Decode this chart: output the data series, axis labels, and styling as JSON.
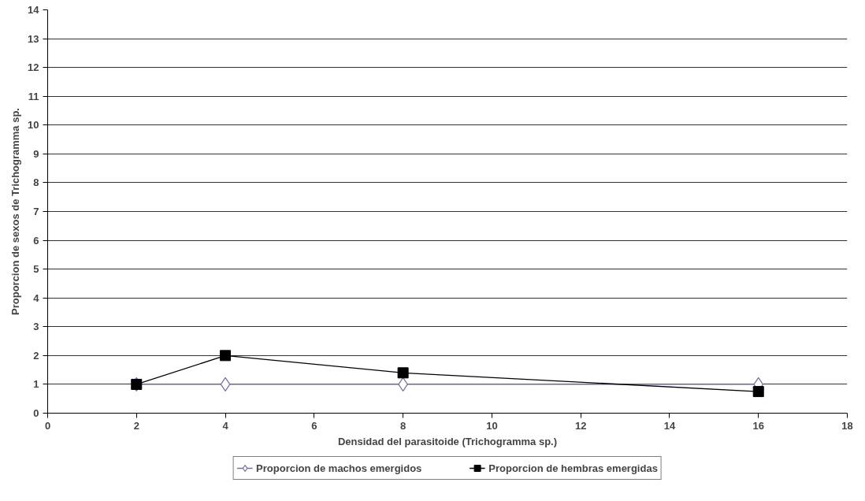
{
  "chart_data": {
    "type": "line",
    "xlabel": "Densidad del parasitoide (Trichogramma sp.)",
    "ylabel": "Proporcion de sexos de Trichogramma sp.",
    "x": [
      2,
      4,
      8,
      16
    ],
    "series": [
      {
        "name": "Proporcion de machos emergidos",
        "color": "#7070a8",
        "values": [
          1,
          1,
          1,
          1
        ],
        "marker": "diamond"
      },
      {
        "name": "Proporcion de hembras emergidas",
        "color": "#000000",
        "values": [
          1,
          2,
          1.4,
          0.75
        ],
        "marker": "square"
      }
    ],
    "xlim": [
      0,
      18
    ],
    "xticks": [
      0,
      2,
      4,
      6,
      8,
      10,
      12,
      14,
      16,
      18
    ],
    "ylim": [
      0,
      14
    ],
    "yticks": [
      0,
      1,
      2,
      3,
      4,
      5,
      6,
      7,
      8,
      9,
      10,
      11,
      12,
      13,
      14
    ],
    "grid": "y",
    "legend": "bottom",
    "line_style": "solid"
  }
}
